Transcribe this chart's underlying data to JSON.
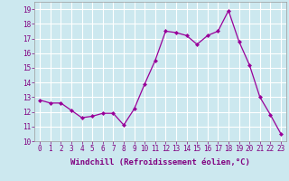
{
  "x": [
    0,
    1,
    2,
    3,
    4,
    5,
    6,
    7,
    8,
    9,
    10,
    11,
    12,
    13,
    14,
    15,
    16,
    17,
    18,
    19,
    20,
    21,
    22,
    23
  ],
  "y": [
    12.8,
    12.6,
    12.6,
    12.1,
    11.6,
    11.7,
    11.9,
    11.9,
    11.1,
    12.2,
    13.9,
    15.5,
    17.5,
    17.4,
    17.2,
    16.6,
    17.2,
    17.5,
    18.9,
    16.8,
    15.2,
    13.0,
    11.8,
    10.5
  ],
  "line_color": "#990099",
  "marker": "D",
  "marker_size": 2,
  "bg_color": "#cce8ef",
  "grid_color": "#ffffff",
  "xlabel": "Windchill (Refroidissement éolien,°C)",
  "ylabel_ticks": [
    10,
    11,
    12,
    13,
    14,
    15,
    16,
    17,
    18,
    19
  ],
  "xlim": [
    -0.5,
    23.5
  ],
  "ylim": [
    10.0,
    19.5
  ],
  "tick_fontsize": 5.5,
  "xlabel_fontsize": 6.5
}
